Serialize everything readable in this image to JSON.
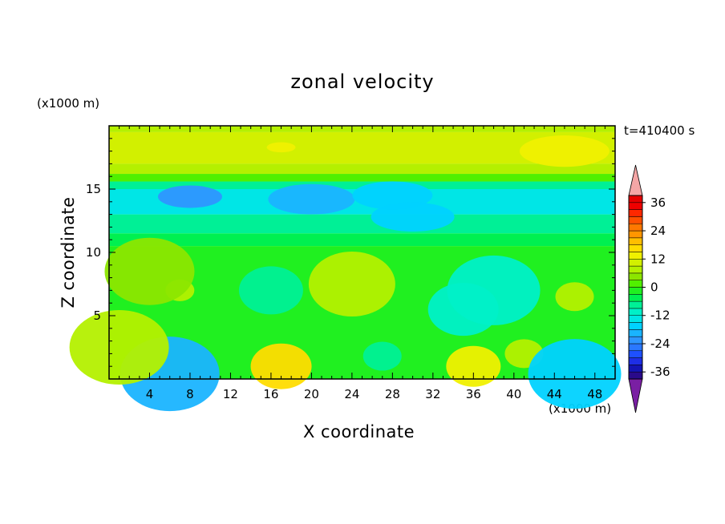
{
  "chart_data": {
    "type": "heatmap",
    "title": "zonal velocity",
    "xlabel": "X coordinate",
    "ylabel": "Z coordinate",
    "x_unit_label": "(x1000 m)",
    "y_unit_label": "(x1000 m)",
    "time_label": "t=410400 s",
    "xlim": [
      0,
      50
    ],
    "ylim": [
      0,
      20
    ],
    "xticks": [
      4,
      8,
      12,
      16,
      20,
      24,
      28,
      32,
      36,
      40,
      44,
      48
    ],
    "yticks": [
      5,
      10,
      15
    ],
    "colorbar": {
      "levels": [
        -42,
        -39,
        -36,
        -33,
        -30,
        -27,
        -24,
        -21,
        -18,
        -15,
        -12,
        -9,
        -6,
        -3,
        0,
        3,
        6,
        9,
        12,
        15,
        18,
        21,
        24,
        27,
        30,
        33,
        36,
        39,
        42
      ],
      "tick_labels": [
        "36",
        "24",
        "12",
        "0",
        "-12",
        "-24",
        "-36"
      ],
      "tick_values": [
        36,
        24,
        12,
        0,
        -12,
        -24,
        -36
      ],
      "colors": [
        "#7a1fa3",
        "#2a0a8a",
        "#1414b4",
        "#1e2ee6",
        "#1e50ff",
        "#2a78ff",
        "#2e96ff",
        "#1ab4ff",
        "#00d2ff",
        "#00e6e6",
        "#00f0c8",
        "#00f096",
        "#00f050",
        "#20f020",
        "#50f000",
        "#8ce600",
        "#b4f000",
        "#d2f000",
        "#f0f000",
        "#ffdc00",
        "#ffbe00",
        "#ff9600",
        "#ff7800",
        "#ff5000",
        "#ff2800",
        "#f00000",
        "#e60000",
        "#f4a6a6"
      ]
    },
    "field": {
      "description_free": true,
      "bands": [
        {
          "z": [
            19.5,
            20.0
          ],
          "value": 8
        },
        {
          "z": [
            17.0,
            19.5
          ],
          "value": 9
        },
        {
          "z": [
            16.2,
            17.0
          ],
          "value": 6
        },
        {
          "z": [
            15.6,
            16.2
          ],
          "value": 2
        },
        {
          "z": [
            15.0,
            15.6
          ],
          "value": -8
        },
        {
          "z": [
            13.0,
            15.0
          ],
          "value": -13
        },
        {
          "z": [
            11.5,
            13.0
          ],
          "value": -9
        },
        {
          "z": [
            10.5,
            11.5
          ],
          "value": -4
        },
        {
          "z": [
            0.0,
            10.5
          ],
          "value": -1
        }
      ],
      "blobs": [
        {
          "x": 17,
          "z": 18.3,
          "value": 14
        },
        {
          "x": 45,
          "z": 18.0,
          "value": 12
        },
        {
          "x": 8,
          "z": 14.4,
          "value": -22
        },
        {
          "x": 20,
          "z": 14.2,
          "value": -20
        },
        {
          "x": 28,
          "z": 14.5,
          "value": -18
        },
        {
          "x": 30,
          "z": 12.8,
          "value": -17
        },
        {
          "x": 7,
          "z": 7,
          "value": 7
        },
        {
          "x": 4,
          "z": 8.5,
          "value": 5
        },
        {
          "x": 16,
          "z": 7,
          "value": -8
        },
        {
          "x": 24,
          "z": 7.5,
          "value": 6
        },
        {
          "x": 35,
          "z": 5.5,
          "value": -10
        },
        {
          "x": 38,
          "z": 7,
          "value": -11
        },
        {
          "x": 46,
          "z": 6.5,
          "value": 8
        },
        {
          "x": 17,
          "z": 1.0,
          "value": 16
        },
        {
          "x": 36,
          "z": 1.0,
          "value": 14
        },
        {
          "x": 41,
          "z": 2.0,
          "value": 8
        },
        {
          "x": 6,
          "z": 0.4,
          "value": -20
        },
        {
          "x": 46,
          "z": 0.4,
          "value": -18
        },
        {
          "x": 27,
          "z": 1.8,
          "value": -8
        },
        {
          "x": 1,
          "z": 2.5,
          "value": 6
        }
      ]
    }
  }
}
